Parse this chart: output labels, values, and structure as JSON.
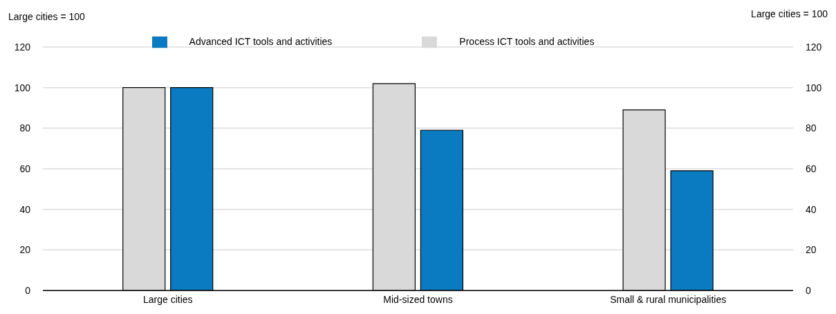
{
  "chart_data": {
    "type": "bar",
    "ylabel": "Large cities = 100",
    "y2label": "Large cities = 100",
    "categories": [
      "Large cities",
      "Mid-sized towns",
      "Small & rural municipalities"
    ],
    "series": [
      {
        "name": "Process ICT tools and activities",
        "color": "#d9d9d9",
        "values": [
          100,
          102,
          89
        ]
      },
      {
        "name": "Advanced ICT tools and activities",
        "color": "#0a7bc1",
        "values": [
          100,
          79,
          59
        ]
      }
    ],
    "ylim": [
      0,
      120
    ],
    "yticks": [
      0,
      20,
      40,
      60,
      80,
      100,
      120
    ],
    "y2lim": [
      0,
      120
    ],
    "y2ticks": [
      0,
      20,
      40,
      60,
      80,
      100,
      120
    ],
    "grid": "y",
    "legend": "top"
  }
}
